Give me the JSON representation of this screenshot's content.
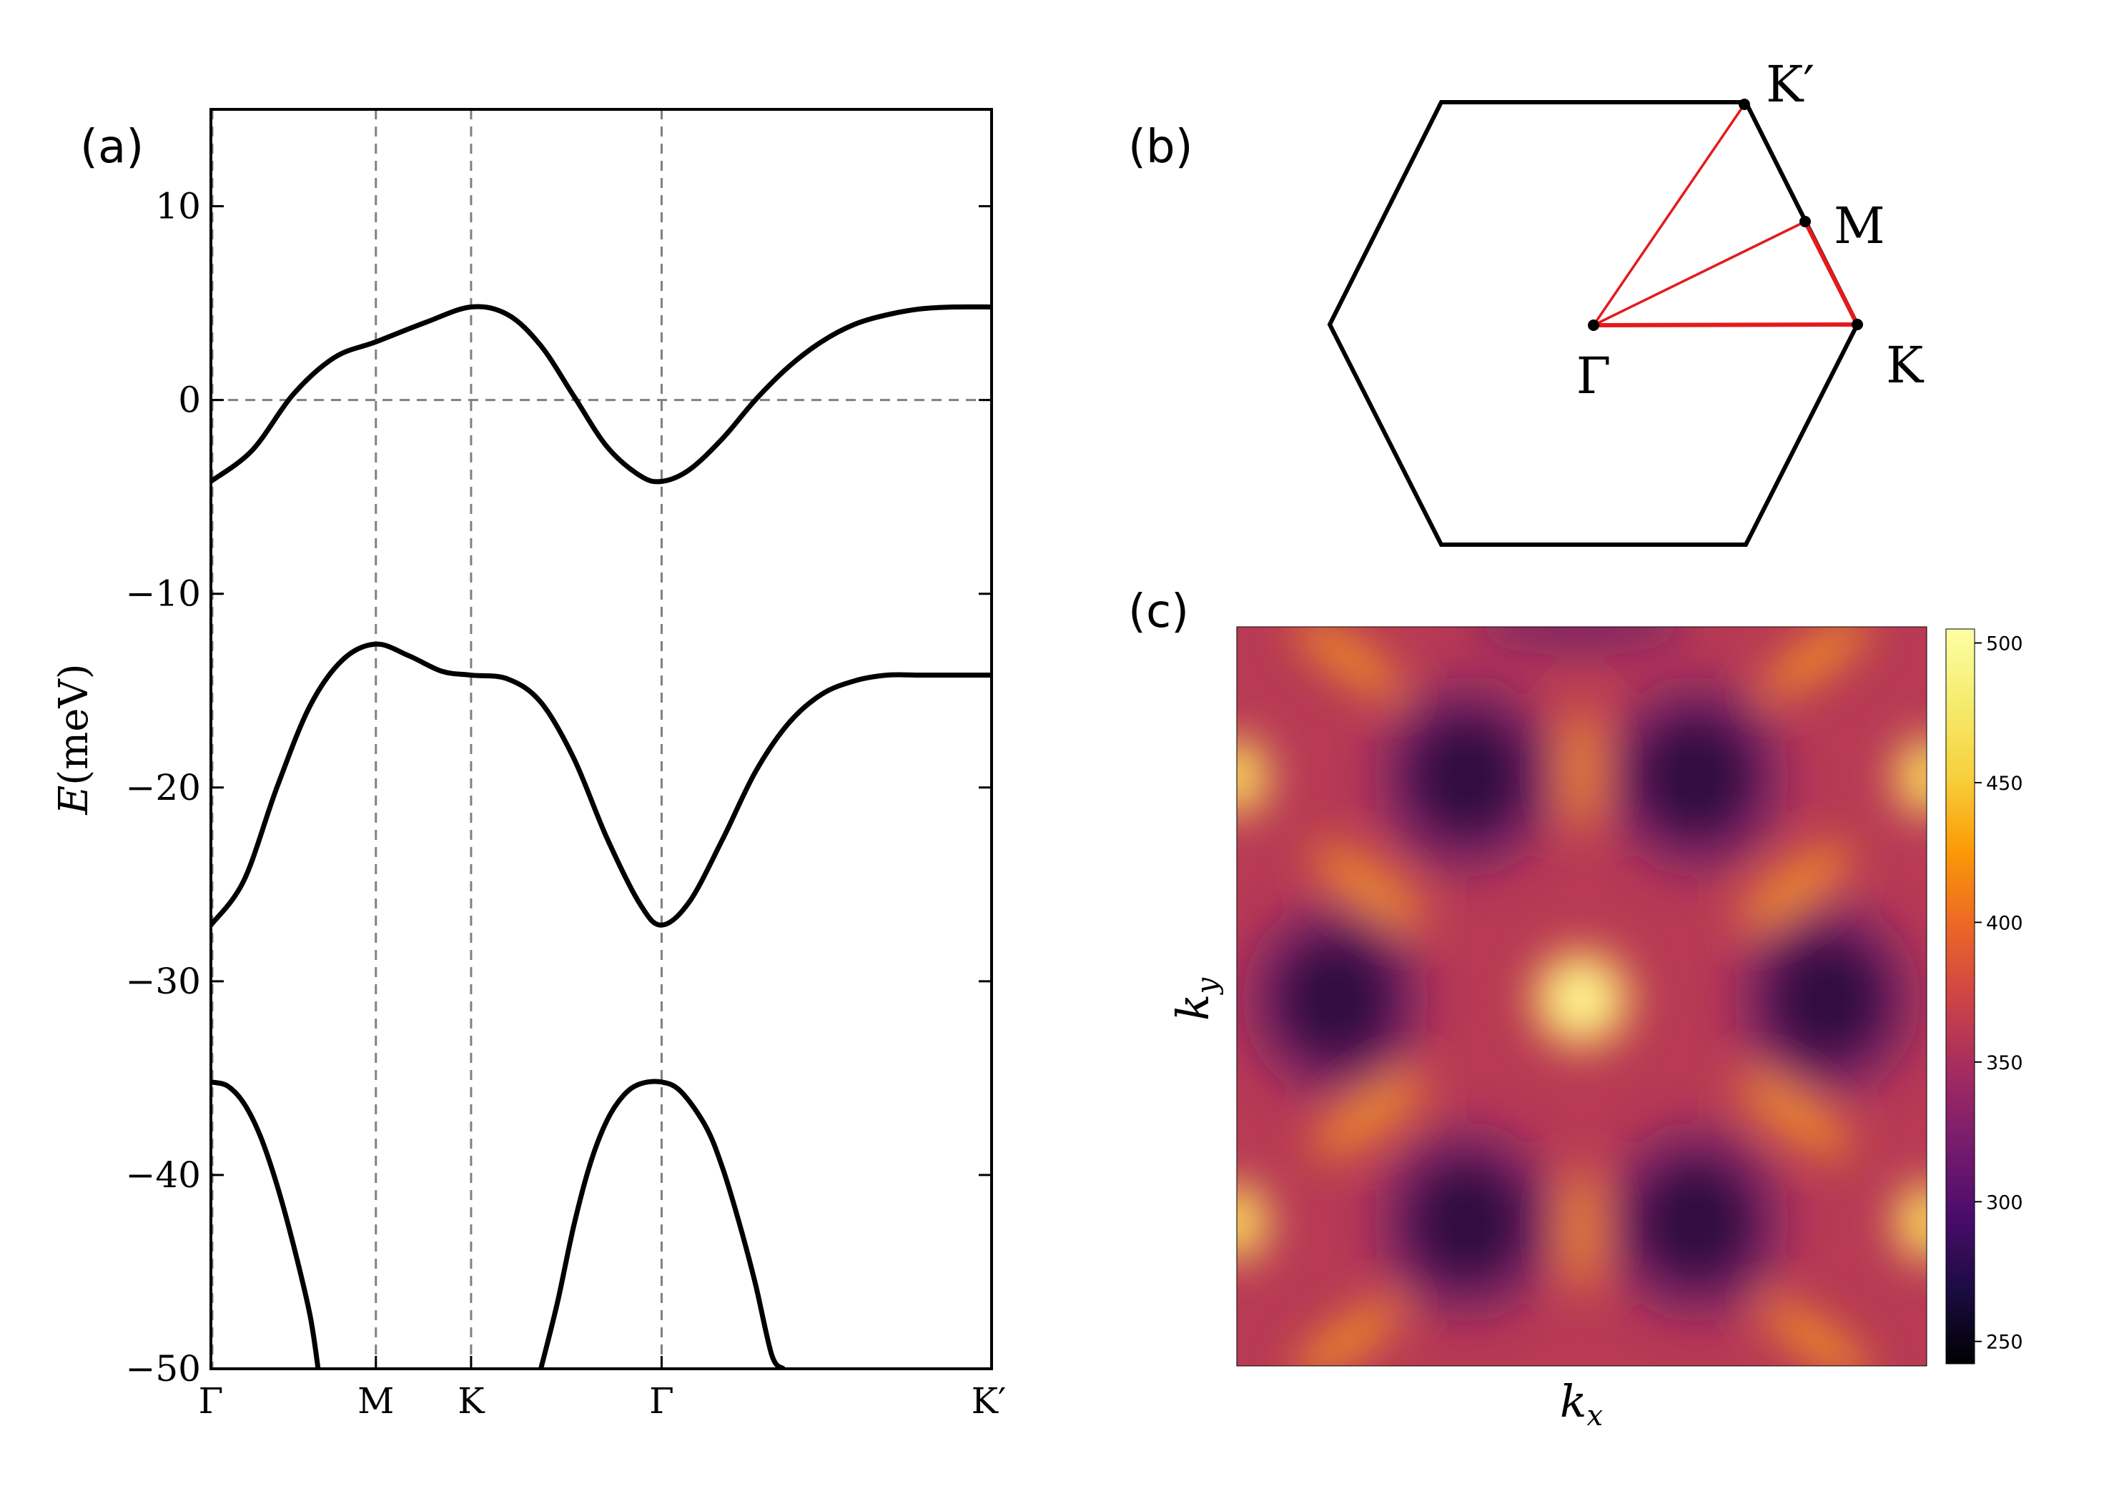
{
  "panels": {
    "a": "(a)",
    "b": "(b)",
    "c": "(c)"
  },
  "chart_data": [
    {
      "type": "line",
      "panel": "(a)",
      "ylabel": "E(meV)",
      "ylabel_italic_part": "E",
      "ylabel_unit_part": "(meV)",
      "ylim": [
        -50,
        15
      ],
      "yticks": [
        10,
        0,
        -10,
        -20,
        -30,
        -40,
        -50
      ],
      "ytick_labels": [
        "10",
        "0",
        "−10",
        "−20",
        "−30",
        "−40",
        "−50"
      ],
      "xticks": [
        0,
        1,
        1.577,
        2.732,
        4.732
      ],
      "xtick_labels": [
        "Γ",
        "M",
        "K",
        "Γ",
        "K′"
      ],
      "xlim": [
        0,
        4.732
      ],
      "reference_lines": {
        "vertical_at": [
          1,
          1.577,
          2.732
        ],
        "horizontal_at": [
          0
        ],
        "style": "dashed gray"
      },
      "series": [
        {
          "x": [
            0,
            0.25,
            0.5,
            0.75,
            1.0,
            1.3,
            1.577,
            1.8,
            2.0,
            2.2,
            2.4,
            2.6,
            2.732,
            2.9,
            3.1,
            3.3,
            3.5,
            3.7,
            3.9,
            4.1,
            4.3,
            4.5,
            4.732
          ],
          "values": [
            -4.2,
            -2.6,
            0.3,
            2.2,
            3.0,
            4.0,
            4.8,
            4.4,
            2.8,
            0.2,
            -2.4,
            -3.9,
            -4.2,
            -3.6,
            -2.0,
            0.0,
            1.7,
            3.0,
            3.9,
            4.4,
            4.7,
            4.8,
            4.8
          ]
        },
        {
          "x": [
            0,
            0.2,
            0.4,
            0.6,
            0.8,
            1.0,
            1.2,
            1.4,
            1.577,
            1.8,
            2.0,
            2.2,
            2.4,
            2.6,
            2.732,
            2.9,
            3.1,
            3.3,
            3.5,
            3.7,
            3.9,
            4.1,
            4.3,
            4.5,
            4.732
          ],
          "values": [
            -27.1,
            -24.8,
            -20.0,
            -15.8,
            -13.4,
            -12.6,
            -13.2,
            -14.0,
            -14.2,
            -14.4,
            -15.6,
            -18.5,
            -22.6,
            -26.0,
            -27.1,
            -25.9,
            -22.7,
            -19.2,
            -16.7,
            -15.2,
            -14.5,
            -14.2,
            -14.2,
            -14.2,
            -14.2
          ]
        },
        {
          "x": [
            0,
            0.1,
            0.2,
            0.3,
            0.4,
            0.5,
            0.6,
            0.65,
            2.0,
            2.1,
            2.2,
            2.3,
            2.4,
            2.5,
            2.6,
            2.732,
            2.85,
            3.0,
            3.1,
            3.2,
            3.3,
            3.4,
            3.47
          ],
          "values": [
            -35.2,
            -35.4,
            -36.3,
            -38.0,
            -40.5,
            -43.6,
            -47.2,
            -50.0,
            -50.0,
            -46.6,
            -42.6,
            -39.4,
            -37.2,
            -35.9,
            -35.3,
            -35.2,
            -35.7,
            -37.5,
            -39.6,
            -42.4,
            -45.6,
            -49.3,
            -50.0
          ]
        }
      ]
    },
    {
      "type": "diagram",
      "panel": "(b)",
      "shape": "hexagonal Brillouin zone",
      "points": [
        "Γ",
        "M",
        "K",
        "K′"
      ],
      "path_color": "#e41a1c"
    },
    {
      "type": "heatmap",
      "panel": "(c)",
      "xlabel": "k",
      "xlabel_sub": "x",
      "ylabel": "k",
      "ylabel_sub": "y",
      "colormap": "inferno",
      "colorbar_range": [
        242,
        505
      ],
      "colorbar_ticks": [
        250,
        300,
        350,
        400,
        450,
        500
      ]
    }
  ]
}
